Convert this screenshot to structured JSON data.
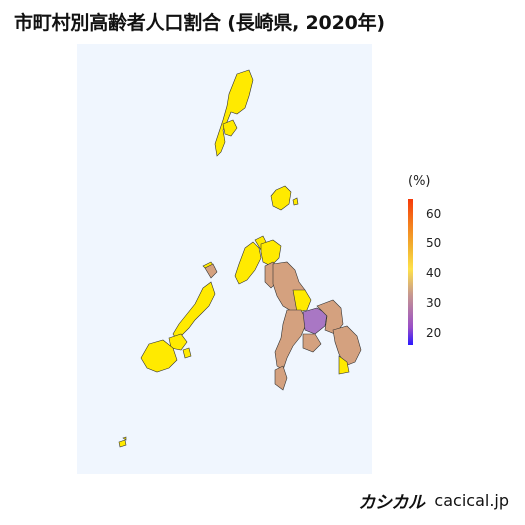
{
  "title": "市町村別高齢者人口割合 (長崎県, 2020年)",
  "legend": {
    "unit": "(%)",
    "ticks": [
      "60",
      "50",
      "40",
      "30",
      "20"
    ],
    "colors": {
      "low": "#2b18ff",
      "mid": "#ffe24a",
      "high": "#f63a09"
    }
  },
  "credit": {
    "logo": "カシカル",
    "site": "cacical.jp"
  },
  "colors": {
    "background": "#f0f6fe",
    "yellow": "#ffea00",
    "tan": "#d4a17f",
    "purple": "#a977c4",
    "border": "#333333"
  }
}
